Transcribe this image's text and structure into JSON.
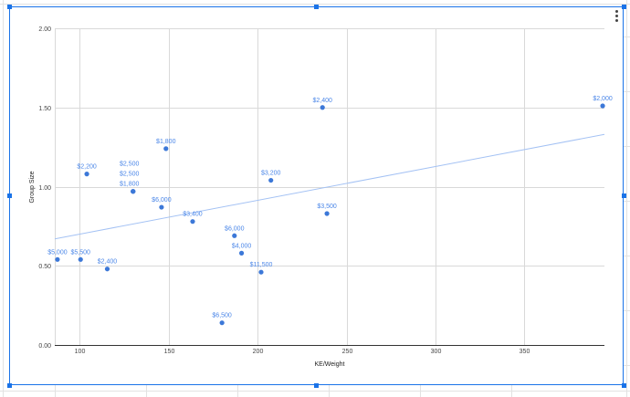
{
  "chart_data": {
    "type": "scatter",
    "title": "",
    "xlabel": "KE/Weight",
    "ylabel": "Group Size",
    "xlim": [
      86,
      395
    ],
    "ylim": [
      0,
      2
    ],
    "x_ticks": [
      "100",
      "150",
      "200",
      "250",
      "300",
      "350"
    ],
    "x_tick_values": [
      100,
      150,
      200,
      250,
      300,
      350
    ],
    "y_ticks": [
      "0.00",
      "0.50",
      "1.00",
      "1.50",
      "2.00"
    ],
    "y_tick_values": [
      0,
      0.5,
      1,
      1.5,
      2
    ],
    "grid": true,
    "point_color": "#3c78d8",
    "trendline_color": "#a4c2f4",
    "trendline": {
      "x": [
        86,
        395
      ],
      "y": [
        0.67,
        1.33
      ]
    },
    "points": [
      {
        "x": 87.5,
        "y": 0.54,
        "label": "$5,000"
      },
      {
        "x": 100.5,
        "y": 0.54,
        "label": "$5,500"
      },
      {
        "x": 104,
        "y": 1.08,
        "label": "$2,200"
      },
      {
        "x": 115.5,
        "y": 0.48,
        "label": "$2,400"
      },
      {
        "x": 130,
        "y": 0.97,
        "label": "$2,500"
      },
      {
        "x": 130,
        "y": 0.97,
        "label": "$2,500"
      },
      {
        "x": 130,
        "y": 0.97,
        "label": "$1,800"
      },
      {
        "x": 146,
        "y": 0.87,
        "label": "$6,000"
      },
      {
        "x": 148.5,
        "y": 1.24,
        "label": "$1,800"
      },
      {
        "x": 163.5,
        "y": 0.78,
        "label": "$3,400"
      },
      {
        "x": 180,
        "y": 0.14,
        "label": "$6,500"
      },
      {
        "x": 187,
        "y": 0.69,
        "label": "$6,000"
      },
      {
        "x": 191,
        "y": 0.58,
        "label": "$4,000"
      },
      {
        "x": 202,
        "y": 0.46,
        "label": "$11,500"
      },
      {
        "x": 207.5,
        "y": 1.04,
        "label": "$3,200"
      },
      {
        "x": 236.5,
        "y": 1.5,
        "label": "$2,400"
      },
      {
        "x": 239,
        "y": 0.83,
        "label": "$3,500"
      },
      {
        "x": 394,
        "y": 1.51,
        "label": "$2,000"
      }
    ]
  }
}
